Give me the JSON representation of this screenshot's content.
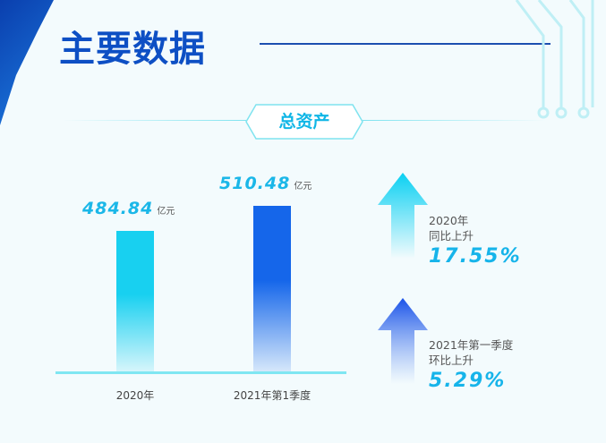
{
  "header": {
    "title": "主要数据"
  },
  "section": {
    "title": "总资产"
  },
  "chart_data": {
    "type": "bar",
    "title": "总资产",
    "categories": [
      "2020年",
      "2021年第1季度"
    ],
    "values": [
      484.84,
      510.48
    ],
    "value_labels": [
      "484.84",
      "510.48"
    ],
    "unit": "亿元",
    "ylim": [
      340,
      540
    ],
    "colors": [
      "#18d0f0",
      "#1566ea"
    ]
  },
  "stats": [
    {
      "label1": "2020年",
      "label2": "同比上升",
      "value": "17.55%",
      "color": "#10c9f0"
    },
    {
      "label1": "2021年第一季度",
      "label2": "环比上升",
      "value": "5.29%",
      "color": "#1a5be8"
    }
  ]
}
